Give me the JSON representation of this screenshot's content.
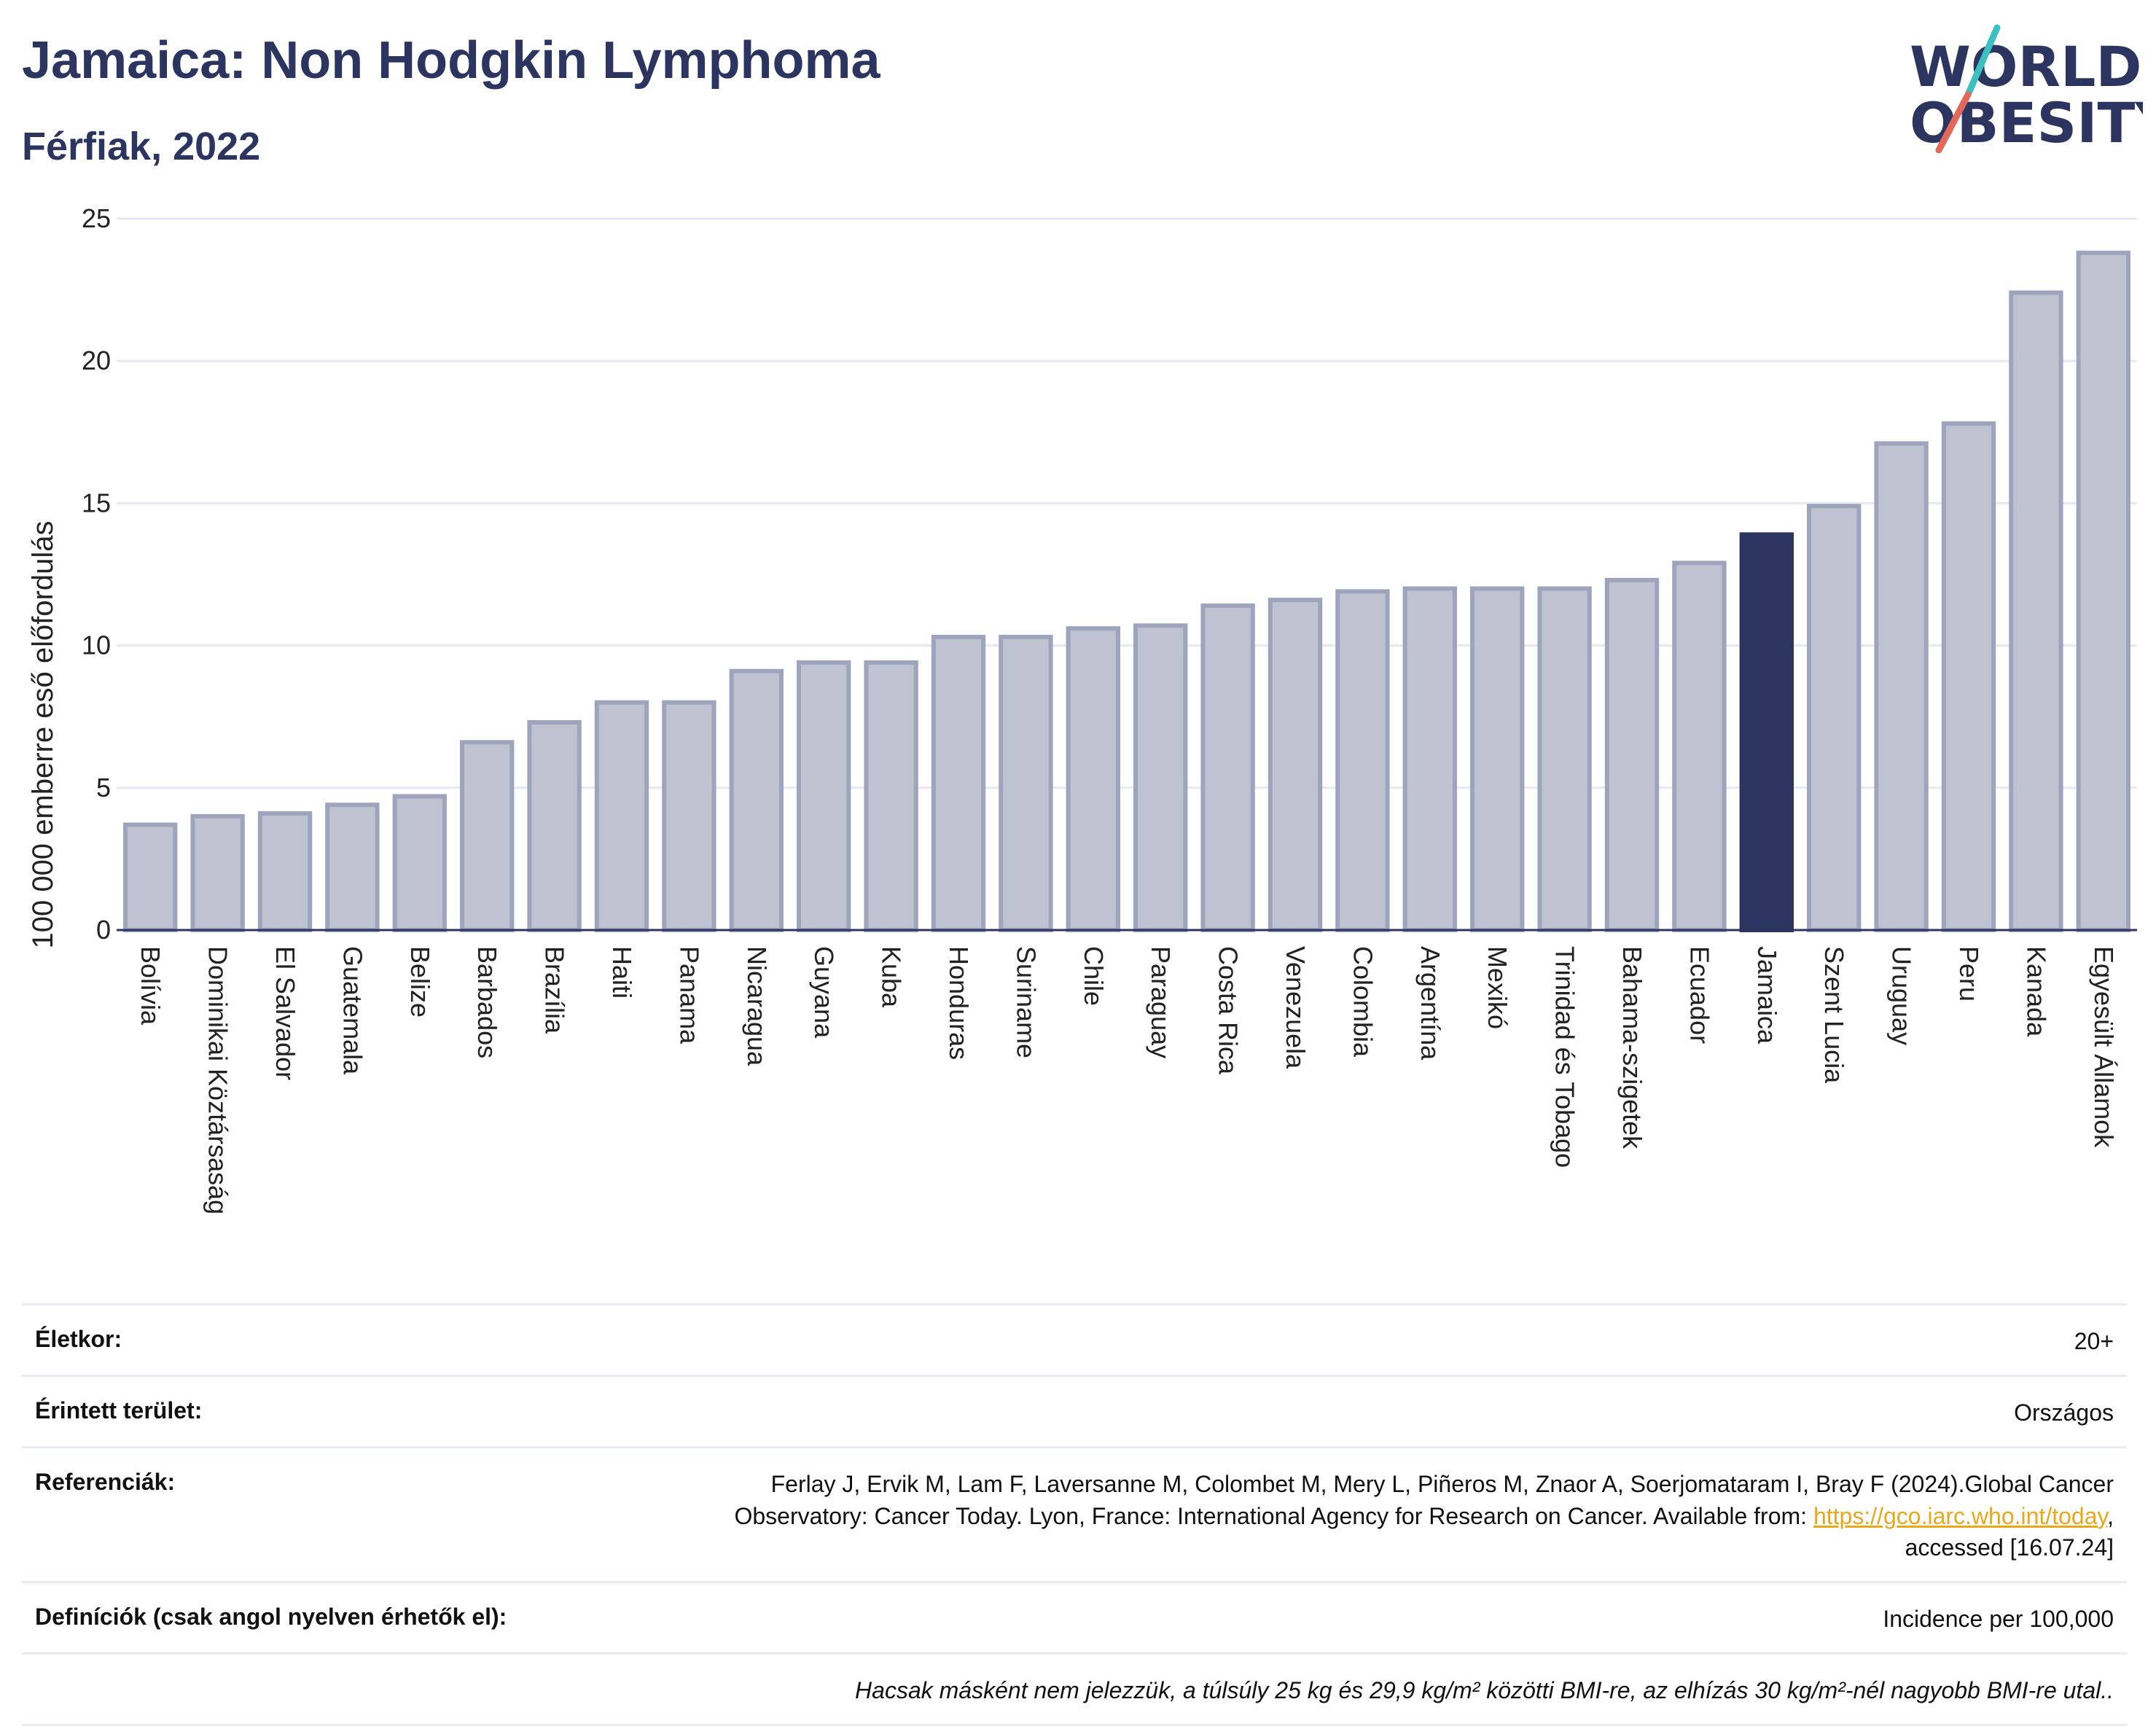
{
  "header": {
    "title": "Jamaica: Non Hodgkin Lymphoma",
    "subtitle": "Férfiak, 2022"
  },
  "logo": {
    "line1": "WORLD",
    "line2": "OBESITY",
    "colors": {
      "text": "#2b3560",
      "slash_teal": "#3cbfc0",
      "slash_red": "#e2685a"
    }
  },
  "chart_data": {
    "type": "bar",
    "title": "",
    "xlabel": "",
    "ylabel": "100 000 emberre eső előfordulás",
    "ylim": [
      0,
      25
    ],
    "yticks": [
      0,
      5,
      10,
      15,
      20,
      25
    ],
    "grid": true,
    "highlight": "Jamaica",
    "colors": {
      "bar": "#bfc3d1",
      "bar_edge": "#9ea4bb",
      "highlight": "#2b3560"
    },
    "categories": [
      "Bolívia",
      "Dominikai Köztársaság",
      "El Salvador",
      "Guatemala",
      "Belize",
      "Barbados",
      "Brazília",
      "Haiti",
      "Panama",
      "Nicaragua",
      "Guyana",
      "Kuba",
      "Honduras",
      "Suriname",
      "Chile",
      "Paraguay",
      "Costa Rica",
      "Venezuela",
      "Colombia",
      "Argentína",
      "Mexikó",
      "Trinidad és Tobago",
      "Bahama-szigetek",
      "Ecuador",
      "Jamaica",
      "Szent Lucia",
      "Uruguay",
      "Peru",
      "Kanada",
      "Egyesült Államok"
    ],
    "values": [
      3.7,
      4.0,
      4.1,
      4.4,
      4.7,
      6.6,
      7.3,
      8.0,
      8.0,
      9.1,
      9.4,
      9.4,
      10.3,
      10.3,
      10.6,
      10.7,
      11.4,
      11.6,
      11.9,
      12.0,
      12.0,
      12.0,
      12.3,
      12.9,
      13.9,
      14.9,
      17.1,
      17.8,
      22.4,
      23.8
    ]
  },
  "info": {
    "age_label": "Életkor:",
    "age_value": "20+",
    "area_label": "Érintett terület:",
    "area_value": "Országos",
    "ref_label": "Referenciák:",
    "ref_text_1": "Ferlay J, Ervik M, Lam F, Laversanne M, Colombet M, Mery L, Piñeros M, Znaor A, Soerjomataram I, Bray F (2024).Global Cancer",
    "ref_text_2": "Observatory: Cancer Today. Lyon, France: International Agency for Research on Cancer. Available from: ",
    "ref_link": "https://gco.iarc.who.int/today",
    "ref_text_3": ",",
    "ref_text_4": "accessed [16.07.24]",
    "def_label": "Definíciók (csak angol nyelven érhetők el):",
    "def_value": "Incidence per 100,000",
    "note": "Hacsak másként nem jelezzük, a túlsúly 25 kg és 29,9 kg/m² közötti BMI-re, az elhízás 30 kg/m²-nél nagyobb BMI-re utal.."
  }
}
